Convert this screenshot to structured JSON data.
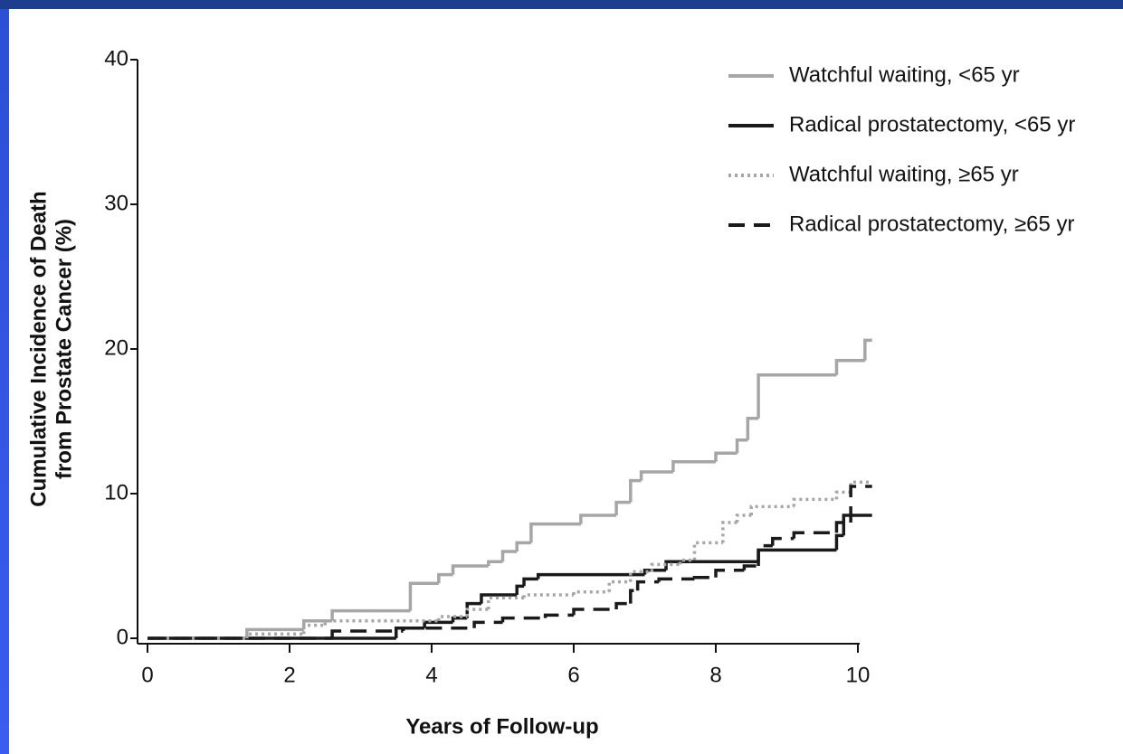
{
  "chart_data": {
    "type": "step",
    "xlabel": "Years of Follow-up",
    "ylabel": [
      "Cumulative Incidence of Death",
      "from Prostate Cancer (%)"
    ],
    "xlim": [
      0,
      10
    ],
    "xticks": [
      0,
      2,
      4,
      6,
      8,
      10
    ],
    "ylim": [
      0,
      40
    ],
    "yticks": [
      0,
      10,
      20,
      30,
      40
    ],
    "legend": "top-right",
    "series": [
      {
        "name": "Watchful waiting, <65 yr",
        "color": "#a6a6a6",
        "dash": "solid",
        "x": [
          0,
          1.4,
          2.2,
          2.6,
          3.7,
          4.1,
          4.3,
          4.8,
          5.0,
          5.2,
          5.4,
          6.1,
          6.6,
          6.8,
          6.95,
          7.4,
          8.0,
          8.3,
          8.45,
          8.6,
          9.7,
          10.1,
          10.2
        ],
        "values": [
          0,
          0.6,
          1.2,
          1.9,
          3.8,
          4.4,
          5.0,
          5.3,
          6.0,
          6.6,
          7.9,
          8.5,
          9.4,
          10.9,
          11.5,
          12.2,
          12.8,
          13.7,
          15.2,
          18.2,
          19.2,
          20.6,
          20.6
        ]
      },
      {
        "name": "Radical prostatectomy, <65 yr",
        "color": "#1a1a1a",
        "dash": "solid",
        "x": [
          0,
          3.5,
          3.9,
          4.3,
          4.5,
          4.7,
          5.2,
          5.3,
          5.5,
          7.0,
          7.3,
          8.6,
          9.7,
          9.8,
          10.2
        ],
        "values": [
          0,
          0.7,
          1.1,
          1.4,
          2.4,
          3.0,
          3.6,
          4.1,
          4.4,
          4.7,
          5.3,
          6.1,
          7.1,
          8.5,
          8.5
        ]
      },
      {
        "name": "Watchful waiting, ≥65 yr",
        "color": "#a6a6a6",
        "dash": "dotted",
        "x": [
          0,
          1.4,
          2.2,
          2.5,
          4.1,
          4.5,
          4.8,
          5.3,
          6.0,
          6.5,
          6.8,
          7.1,
          7.5,
          7.7,
          8.1,
          8.3,
          8.5,
          9.1,
          9.7,
          9.9,
          10.2
        ],
        "values": [
          0,
          0.3,
          0.9,
          1.2,
          1.5,
          2.0,
          2.8,
          3.0,
          3.2,
          3.9,
          4.6,
          5.1,
          5.4,
          6.6,
          8.0,
          8.5,
          9.1,
          9.6,
          10.1,
          10.8,
          10.8
        ]
      },
      {
        "name": "Radical prostatectomy, ≥65 yr",
        "color": "#1a1a1a",
        "dash": "dashed",
        "x": [
          0,
          2.6,
          3.6,
          4.6,
          5.0,
          5.6,
          6.0,
          6.6,
          6.8,
          6.9,
          7.2,
          7.7,
          8.0,
          8.4,
          8.6,
          8.8,
          9.1,
          9.7,
          9.9,
          10.2
        ],
        "values": [
          0,
          0.5,
          0.7,
          1.1,
          1.4,
          1.6,
          2.0,
          2.4,
          3.3,
          3.9,
          4.1,
          4.2,
          4.7,
          5.0,
          6.4,
          6.9,
          7.3,
          8.0,
          10.5,
          10.5
        ]
      }
    ]
  }
}
